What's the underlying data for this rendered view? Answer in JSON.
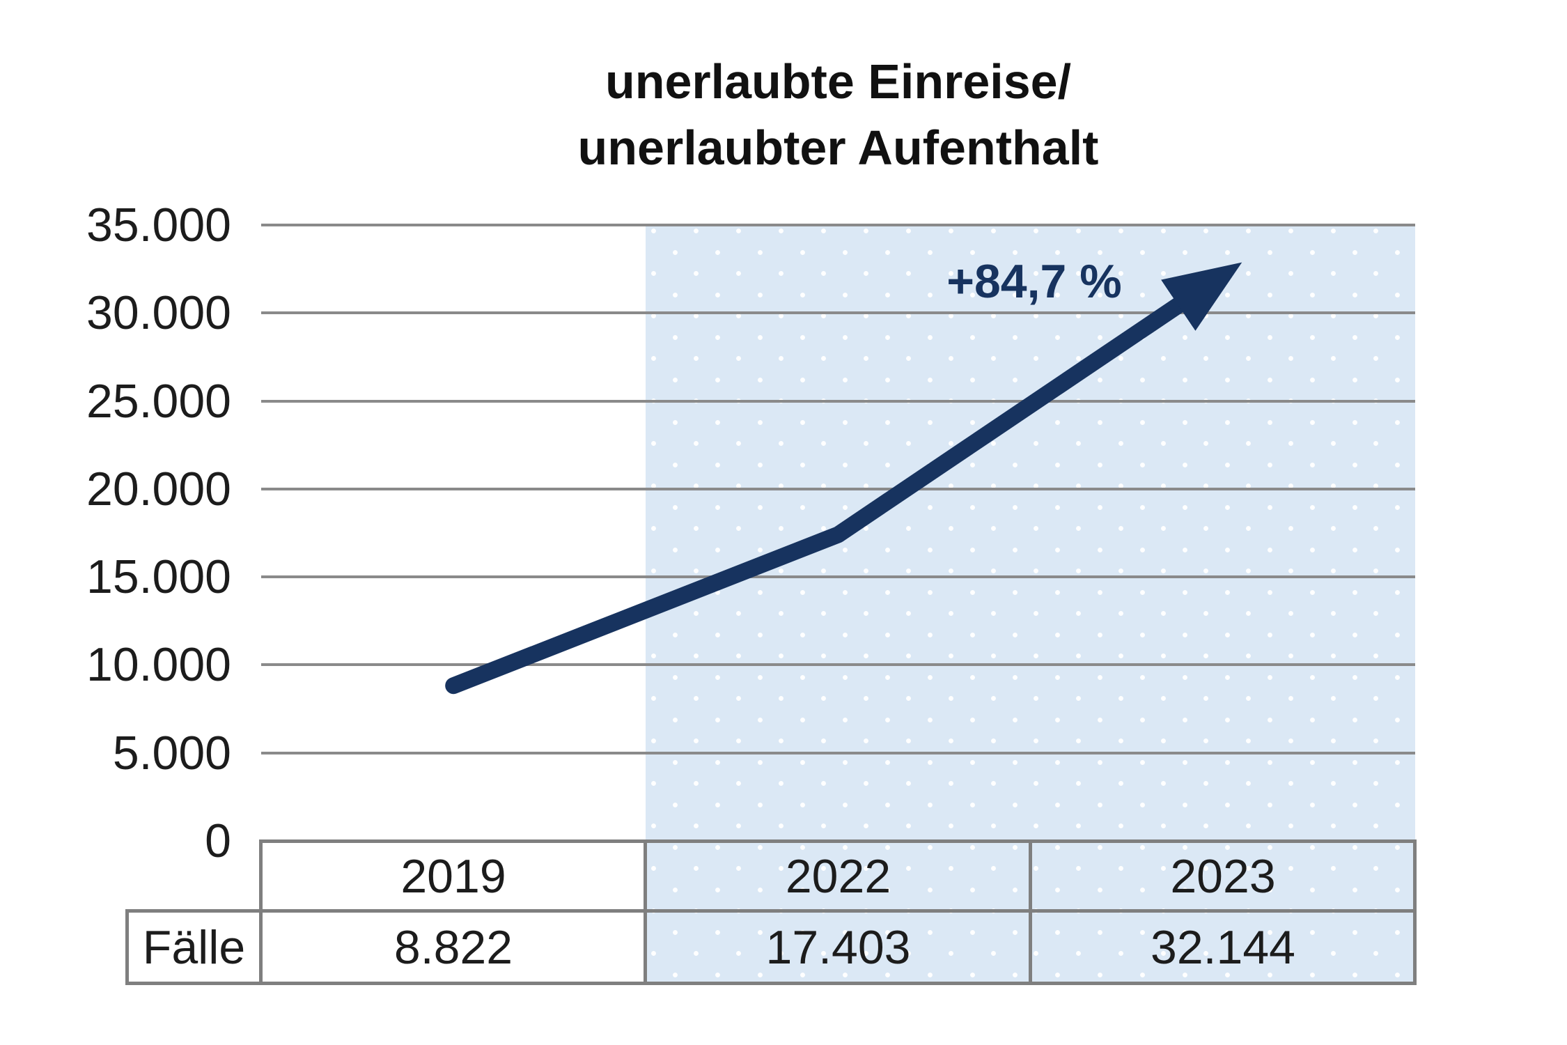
{
  "title": {
    "line1": "unerlaubte Einreise/",
    "line2": "unerlaubter Aufenthalt"
  },
  "annotation": "+84,7 %",
  "y_axis": {
    "labels": [
      "35.000",
      "30.000",
      "25.000",
      "20.000",
      "15.000",
      "10.000",
      "5.000",
      "0"
    ]
  },
  "table": {
    "row_label": "Fälle",
    "years": [
      "2019",
      "2022",
      "2023"
    ],
    "values": [
      "8.822",
      "17.403",
      "32.144"
    ]
  },
  "colors": {
    "line": "#17335f",
    "shade": "#dbe8f5",
    "grid": "#8a8a8a",
    "border": "#7f7f7f",
    "text": "#1c1c1c"
  },
  "chart_data": {
    "type": "line",
    "title": "unerlaubte Einreise/ unerlaubter Aufenthalt",
    "categories": [
      "2019",
      "2022",
      "2023"
    ],
    "series": [
      {
        "name": "Fälle",
        "values": [
          8822,
          17403,
          32144
        ]
      }
    ],
    "annotations": [
      "+84,7 %"
    ],
    "ylim": [
      0,
      35000
    ],
    "y_tick_step": 5000,
    "y_tick_labels": [
      "0",
      "5.000",
      "10.000",
      "15.000",
      "20.000",
      "25.000",
      "30.000",
      "35.000"
    ],
    "grid": true,
    "legend": false,
    "highlight_region_categories": [
      "2022",
      "2023"
    ],
    "arrow_end": true
  }
}
